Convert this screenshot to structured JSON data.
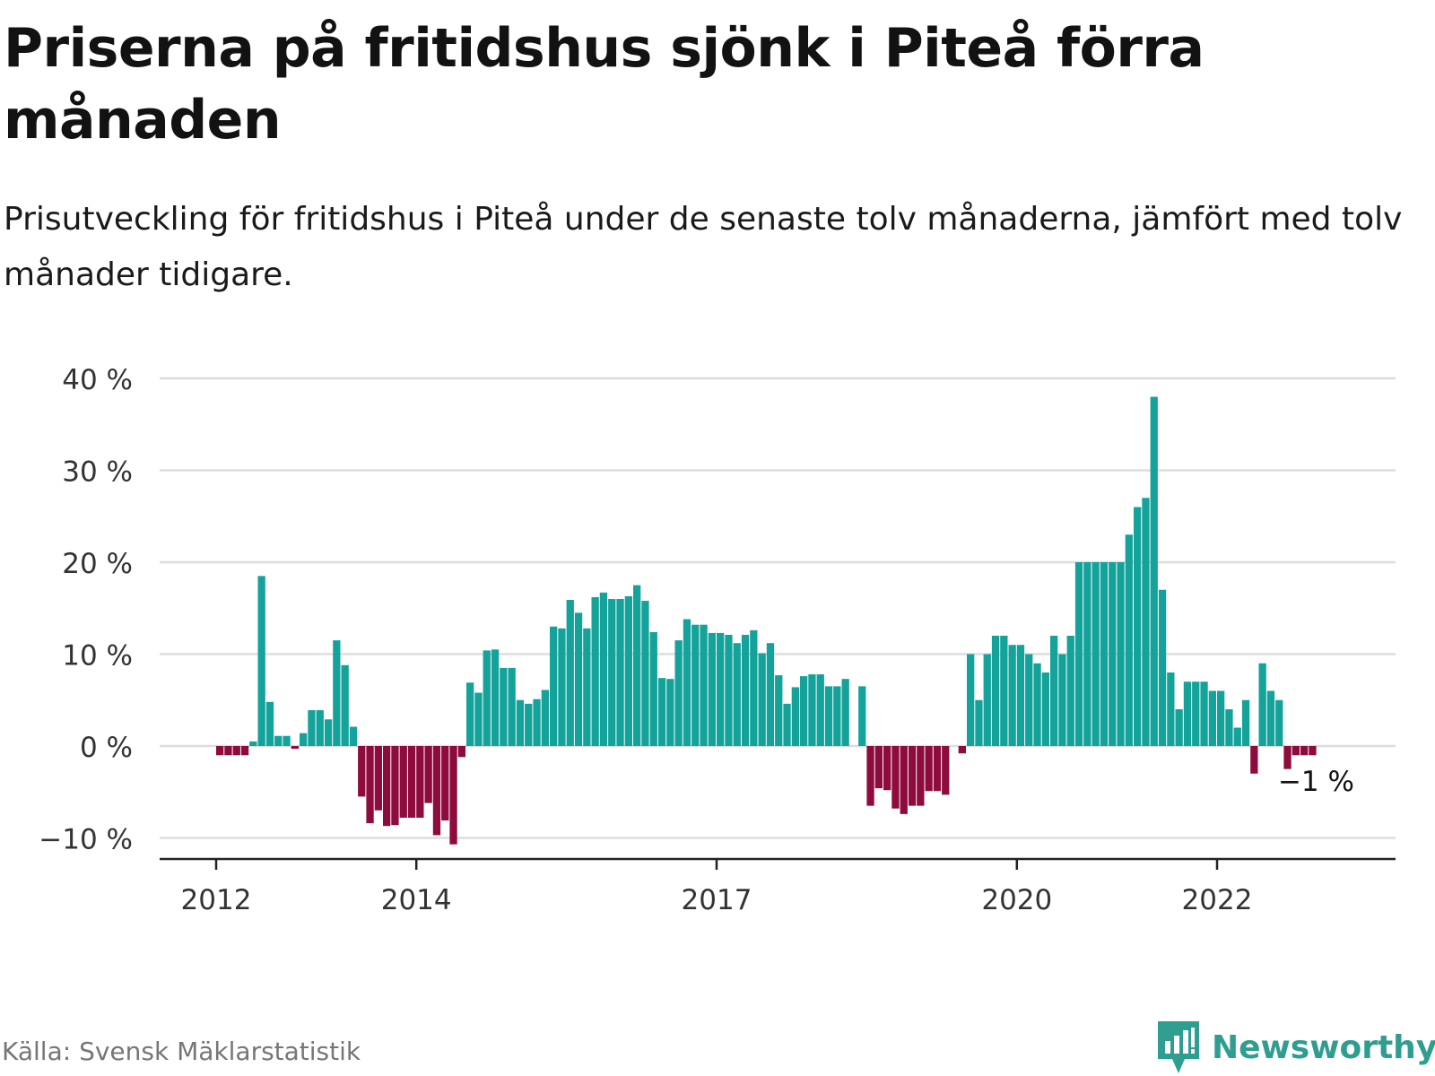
{
  "title": "Priserna på fritidshus sjönk i Piteå förra månaden",
  "subtitle": "Prisutveckling för fritidshus i Piteå under de senaste tolv månaderna, jämfört med tolv månader tidigare.",
  "source": "Källa: Svensk Mäklarstatistik",
  "brand": "Newsworthy",
  "colors": {
    "positive": "#14a39a",
    "negative": "#8e0b3d",
    "grid": "#dddddd",
    "axis": "#222222",
    "brand": "#2f9e90"
  },
  "chart_data": {
    "type": "bar",
    "ylim": [
      -12,
      42
    ],
    "grid": true,
    "y_ticks": [
      {
        "value": 40,
        "label": "40 %"
      },
      {
        "value": 30,
        "label": "30 %"
      },
      {
        "value": 20,
        "label": "20 %"
      },
      {
        "value": 10,
        "label": "10 %"
      },
      {
        "value": 0,
        "label": "0 %"
      },
      {
        "value": -10,
        "label": "−10 %"
      }
    ],
    "x_ticks": [
      {
        "index": 0,
        "label": "2012"
      },
      {
        "index": 24,
        "label": "2014"
      },
      {
        "index": 60,
        "label": "2017"
      },
      {
        "index": 96,
        "label": "2020"
      },
      {
        "index": 120,
        "label": "2022"
      }
    ],
    "start_label": "2012",
    "annotation": {
      "text": "−1 %",
      "index": 131
    },
    "values": [
      -1,
      -1,
      -1,
      -1,
      0.5,
      18.5,
      4.8,
      1.1,
      1.1,
      -0.3,
      1.4,
      3.9,
      3.9,
      2.9,
      11.5,
      8.8,
      2.1,
      -5.5,
      -8.4,
      -7.0,
      -8.7,
      -8.6,
      -7.8,
      -7.8,
      -7.8,
      -6.2,
      -9.7,
      -8.1,
      -10.7,
      -1.2,
      6.9,
      5.8,
      10.4,
      10.5,
      8.5,
      8.5,
      5.0,
      4.6,
      5.1,
      6.1,
      13.0,
      12.8,
      15.9,
      14.5,
      12.8,
      16.2,
      16.7,
      16.0,
      16.0,
      16.3,
      17.5,
      15.8,
      12.4,
      7.4,
      7.3,
      11.5,
      13.8,
      13.2,
      13.2,
      12.3,
      12.3,
      12.1,
      11.2,
      12.1,
      12.6,
      10.1,
      11.2,
      7.7,
      4.6,
      6.4,
      7.6,
      7.8,
      7.8,
      6.5,
      6.5,
      7.3,
      0,
      6.5,
      -6.5,
      -4.6,
      -4.8,
      -6.8,
      -7.4,
      -6.5,
      -6.5,
      -4.9,
      -4.9,
      -5.3,
      0,
      -0.8,
      10.0,
      5.0,
      10.0,
      12.0,
      12.0,
      11.0,
      11.0,
      10.0,
      9.0,
      8.0,
      12.0,
      10.0,
      12.0,
      20.0,
      20.0,
      20.0,
      20.0,
      20.0,
      20.0,
      23.0,
      26.0,
      27.0,
      38.0,
      17.0,
      8.0,
      4.0,
      7.0,
      7.0,
      7.0,
      6.0,
      6.0,
      4.0,
      2.0,
      5.0,
      -3.0,
      9.0,
      6.0,
      5.0,
      -2.5,
      -1.0,
      -1.0,
      -1.0
    ]
  }
}
